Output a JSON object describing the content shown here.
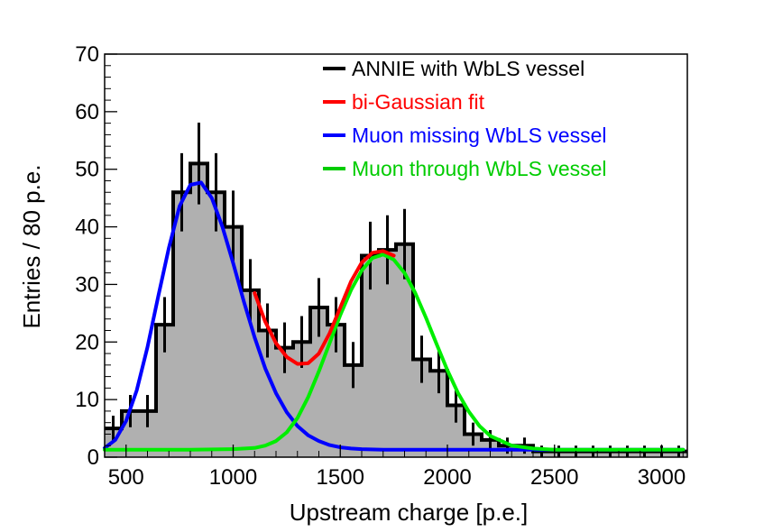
{
  "chart_data": {
    "type": "histogram",
    "xlabel": "Upstream charge [p.e.]",
    "ylabel": "Entries / 80 p.e.",
    "xlim": [
      400,
      3120
    ],
    "ylim": [
      0,
      70
    ],
    "x_ticks": [
      500,
      1000,
      1500,
      2000,
      2500,
      3000
    ],
    "y_ticks": [
      0,
      10,
      20,
      30,
      40,
      50,
      60,
      70
    ],
    "grid": false,
    "legend_position": "top-right",
    "bin_width": 80,
    "histogram": {
      "name": "ANNIE with WbLS vessel",
      "color": "#000000",
      "fill": "#b0b0b0",
      "bin_start": 400,
      "values": [
        5,
        8,
        8,
        23,
        46,
        51,
        46,
        40,
        29,
        22,
        19,
        20,
        26,
        23,
        16,
        35,
        36,
        37,
        17,
        15,
        9,
        4,
        3,
        2,
        2,
        1,
        1,
        1,
        1,
        1,
        1,
        1,
        1,
        1
      ],
      "errors": [
        2.2,
        2.8,
        2.8,
        4.8,
        6.8,
        7.1,
        6.8,
        6.3,
        5.4,
        4.7,
        4.4,
        4.5,
        5.1,
        4.8,
        4.0,
        5.9,
        6.0,
        6.1,
        4.1,
        3.9,
        3.0,
        2.0,
        1.7,
        1.4,
        1.4,
        1.0,
        1.0,
        1.0,
        1.0,
        1.0,
        1.0,
        1.0,
        1.0,
        1.0
      ]
    },
    "series": [
      {
        "name": "bi-Gaussian fit",
        "color": "#ff0000",
        "x": [
          1100,
          1150,
          1200,
          1250,
          1300,
          1350,
          1400,
          1450,
          1500,
          1550,
          1600,
          1650,
          1700,
          1750
        ],
        "y": [
          28.5,
          23.5,
          19.8,
          17.4,
          16.2,
          16.3,
          18.0,
          21.5,
          26.0,
          30.5,
          33.8,
          35.5,
          35.8,
          35.0
        ]
      },
      {
        "name": "Muon missing WbLS vessel",
        "color": "#0000ff",
        "x": [
          400,
          450,
          500,
          550,
          600,
          650,
          700,
          750,
          800,
          850,
          900,
          950,
          1000,
          1050,
          1100,
          1150,
          1200,
          1250,
          1300,
          1350,
          1400,
          1450,
          1500,
          1550,
          1600,
          1700,
          1800,
          2000,
          2200,
          2500,
          2800,
          3100
        ],
        "y": [
          1.6,
          3.0,
          6.3,
          11.6,
          19.1,
          27.9,
          36.4,
          43.6,
          47.3,
          47.7,
          45.0,
          40.0,
          33.7,
          27.0,
          20.8,
          15.4,
          11.1,
          7.8,
          5.4,
          3.8,
          2.8,
          2.1,
          1.7,
          1.5,
          1.4,
          1.3,
          1.3,
          1.3,
          1.3,
          1.3,
          1.3,
          1.3
        ]
      },
      {
        "name": "Muon through WbLS vessel",
        "color": "#00ee00",
        "x": [
          400,
          800,
          1000,
          1100,
          1150,
          1200,
          1250,
          1300,
          1350,
          1400,
          1450,
          1500,
          1550,
          1600,
          1650,
          1700,
          1750,
          1800,
          1850,
          1900,
          1950,
          2000,
          2050,
          2100,
          2150,
          2200,
          2300,
          2400,
          2500,
          2600,
          2800,
          3100
        ],
        "y": [
          1.3,
          1.3,
          1.4,
          1.6,
          2.0,
          2.8,
          4.3,
          6.8,
          10.4,
          14.9,
          19.8,
          24.7,
          29.0,
          32.4,
          34.6,
          35.2,
          34.3,
          32.0,
          28.5,
          24.2,
          19.6,
          15.1,
          11.1,
          7.9,
          5.4,
          3.7,
          2.0,
          1.5,
          1.3,
          1.3,
          1.3,
          1.3
        ]
      }
    ],
    "legend": [
      {
        "label": "ANNIE with WbLS vessel",
        "color": "#000000"
      },
      {
        "label": "bi-Gaussian fit",
        "color": "#ff0000"
      },
      {
        "label": "Muon missing WbLS vessel",
        "color": "#0000ff"
      },
      {
        "label": "Muon through WbLS vessel",
        "color": "#00cc00"
      }
    ]
  }
}
